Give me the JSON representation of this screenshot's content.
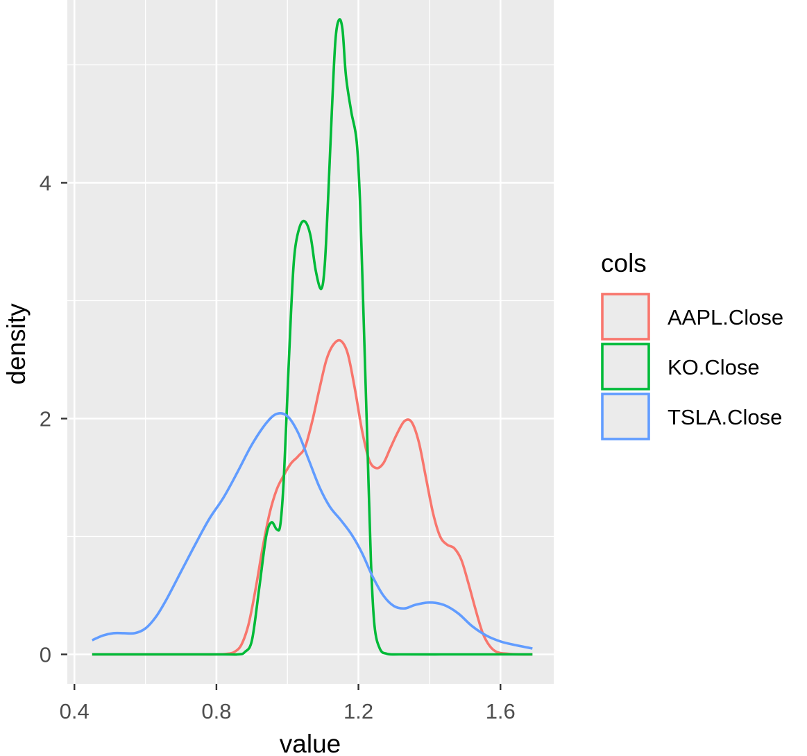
{
  "chart_data": {
    "type": "line",
    "xlabel": "value",
    "ylabel": "density",
    "xlim": [
      0.38,
      1.75
    ],
    "ylim": [
      -0.25,
      5.55
    ],
    "x_ticks": [
      {
        "value": 0.4,
        "label": "0.4"
      },
      {
        "value": 0.8,
        "label": "0.8"
      },
      {
        "value": 1.2,
        "label": "1.2"
      },
      {
        "value": 1.6,
        "label": "1.6"
      }
    ],
    "y_ticks": [
      {
        "value": 0,
        "label": "0"
      },
      {
        "value": 2,
        "label": "2"
      },
      {
        "value": 4,
        "label": "4"
      }
    ],
    "grid": true,
    "legend": {
      "title": "cols",
      "position": "right"
    },
    "series": [
      {
        "name": "AAPL.Close",
        "color": "#F8766D",
        "points": [
          [
            0.45,
            0
          ],
          [
            0.6,
            0
          ],
          [
            0.75,
            0
          ],
          [
            0.8,
            0
          ],
          [
            0.83,
            0.005
          ],
          [
            0.85,
            0.02
          ],
          [
            0.87,
            0.08
          ],
          [
            0.89,
            0.25
          ],
          [
            0.91,
            0.55
          ],
          [
            0.93,
            0.9
          ],
          [
            0.95,
            1.2
          ],
          [
            0.97,
            1.4
          ],
          [
            0.99,
            1.52
          ],
          [
            1.01,
            1.62
          ],
          [
            1.03,
            1.68
          ],
          [
            1.05,
            1.76
          ],
          [
            1.07,
            1.98
          ],
          [
            1.09,
            2.25
          ],
          [
            1.11,
            2.5
          ],
          [
            1.13,
            2.63
          ],
          [
            1.15,
            2.66
          ],
          [
            1.17,
            2.55
          ],
          [
            1.19,
            2.25
          ],
          [
            1.21,
            1.9
          ],
          [
            1.23,
            1.65
          ],
          [
            1.25,
            1.58
          ],
          [
            1.27,
            1.62
          ],
          [
            1.29,
            1.75
          ],
          [
            1.31,
            1.88
          ],
          [
            1.33,
            1.98
          ],
          [
            1.35,
            1.97
          ],
          [
            1.37,
            1.8
          ],
          [
            1.39,
            1.5
          ],
          [
            1.41,
            1.2
          ],
          [
            1.43,
            1.0
          ],
          [
            1.45,
            0.93
          ],
          [
            1.47,
            0.9
          ],
          [
            1.49,
            0.8
          ],
          [
            1.51,
            0.6
          ],
          [
            1.53,
            0.38
          ],
          [
            1.55,
            0.18
          ],
          [
            1.57,
            0.07
          ],
          [
            1.59,
            0.02
          ],
          [
            1.62,
            0.005
          ],
          [
            1.65,
            0
          ],
          [
            1.69,
            0
          ]
        ]
      },
      {
        "name": "KO.Close",
        "color": "#00BA38",
        "points": [
          [
            0.45,
            0
          ],
          [
            0.8,
            0
          ],
          [
            0.86,
            0
          ],
          [
            0.88,
            0.02
          ],
          [
            0.9,
            0.12
          ],
          [
            0.92,
            0.55
          ],
          [
            0.94,
            1.0
          ],
          [
            0.955,
            1.12
          ],
          [
            0.97,
            1.06
          ],
          [
            0.98,
            1.1
          ],
          [
            0.99,
            1.5
          ],
          [
            1.0,
            2.2
          ],
          [
            1.01,
            2.9
          ],
          [
            1.02,
            3.4
          ],
          [
            1.035,
            3.63
          ],
          [
            1.05,
            3.67
          ],
          [
            1.065,
            3.55
          ],
          [
            1.08,
            3.25
          ],
          [
            1.095,
            3.1
          ],
          [
            1.105,
            3.3
          ],
          [
            1.115,
            3.9
          ],
          [
            1.125,
            4.6
          ],
          [
            1.135,
            5.2
          ],
          [
            1.145,
            5.38
          ],
          [
            1.155,
            5.3
          ],
          [
            1.165,
            4.9
          ],
          [
            1.18,
            4.6
          ],
          [
            1.195,
            4.35
          ],
          [
            1.205,
            3.8
          ],
          [
            1.215,
            2.8
          ],
          [
            1.225,
            1.8
          ],
          [
            1.235,
            0.8
          ],
          [
            1.245,
            0.25
          ],
          [
            1.26,
            0.05
          ],
          [
            1.28,
            0.005
          ],
          [
            1.32,
            0
          ],
          [
            1.45,
            0
          ],
          [
            1.6,
            0
          ],
          [
            1.69,
            0
          ]
        ]
      },
      {
        "name": "TSLA.Close",
        "color": "#619CFF",
        "points": [
          [
            0.45,
            0.12
          ],
          [
            0.48,
            0.16
          ],
          [
            0.51,
            0.18
          ],
          [
            0.54,
            0.18
          ],
          [
            0.57,
            0.18
          ],
          [
            0.6,
            0.22
          ],
          [
            0.63,
            0.32
          ],
          [
            0.66,
            0.47
          ],
          [
            0.7,
            0.7
          ],
          [
            0.74,
            0.93
          ],
          [
            0.78,
            1.15
          ],
          [
            0.82,
            1.33
          ],
          [
            0.86,
            1.55
          ],
          [
            0.9,
            1.78
          ],
          [
            0.94,
            1.96
          ],
          [
            0.97,
            2.04
          ],
          [
            1.0,
            2.02
          ],
          [
            1.03,
            1.88
          ],
          [
            1.06,
            1.65
          ],
          [
            1.09,
            1.42
          ],
          [
            1.12,
            1.25
          ],
          [
            1.15,
            1.14
          ],
          [
            1.18,
            1.02
          ],
          [
            1.21,
            0.86
          ],
          [
            1.24,
            0.66
          ],
          [
            1.27,
            0.5
          ],
          [
            1.3,
            0.41
          ],
          [
            1.33,
            0.39
          ],
          [
            1.36,
            0.42
          ],
          [
            1.4,
            0.44
          ],
          [
            1.44,
            0.42
          ],
          [
            1.48,
            0.35
          ],
          [
            1.52,
            0.24
          ],
          [
            1.56,
            0.16
          ],
          [
            1.6,
            0.11
          ],
          [
            1.64,
            0.08
          ],
          [
            1.69,
            0.05
          ]
        ]
      }
    ]
  }
}
